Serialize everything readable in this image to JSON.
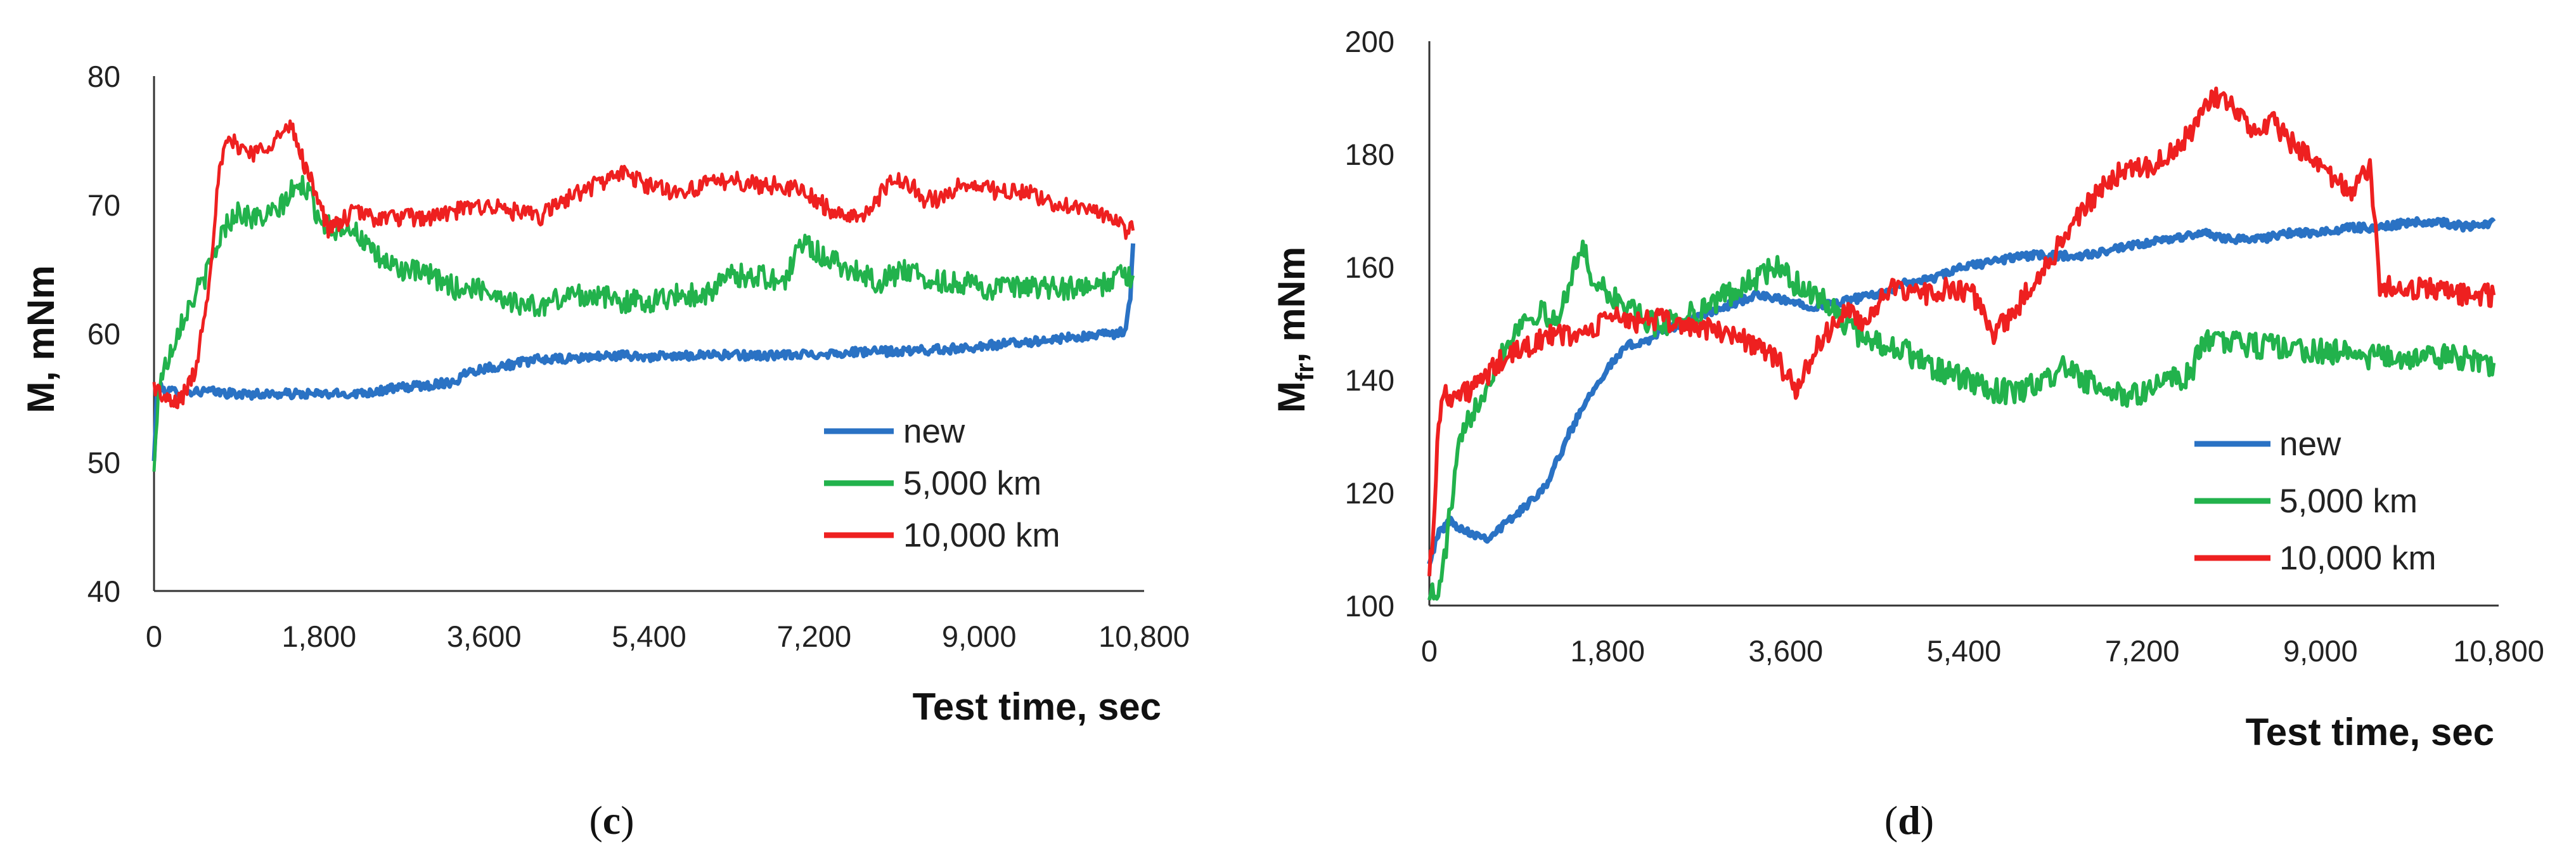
{
  "chart_data": [
    {
      "type": "line",
      "panel": "(c)",
      "caption_letter": "c",
      "xlabel": "Test time, sec",
      "ylabel": "M, mNm",
      "xlim": [
        0,
        10800
      ],
      "ylim": [
        40,
        80
      ],
      "xticks": [
        0,
        1800,
        3600,
        5400,
        7200,
        9000,
        10800
      ],
      "xtick_labels": [
        "0",
        "1,800",
        "3,600",
        "5,400",
        "7,200",
        "9,000",
        "10,800"
      ],
      "yticks": [
        40,
        50,
        60,
        70,
        80
      ],
      "ytick_labels": [
        "40",
        "50",
        "60",
        "70",
        "80"
      ],
      "legend_position": "lower-right",
      "series": [
        {
          "name": "new",
          "color": "#2a72c4",
          "noise": 0.35,
          "x": [
            0,
            30,
            60,
            150,
            300,
            600,
            900,
            1200,
            1500,
            1800,
            2100,
            2400,
            2700,
            3000,
            3300,
            3400,
            3600,
            3900,
            4200,
            4500,
            4800,
            5100,
            5400,
            5700,
            6000,
            6300,
            6600,
            6900,
            7200,
            7500,
            7800,
            8100,
            8400,
            8700,
            9000,
            9300,
            9600,
            9900,
            10200,
            10500,
            10600,
            10650,
            10680
          ],
          "y": [
            50,
            55,
            55.8,
            55.5,
            55.5,
            55.5,
            55.3,
            55.3,
            55.3,
            55.3,
            55.3,
            55.5,
            55.8,
            56,
            56.3,
            57,
            57.3,
            57.6,
            58,
            58,
            58.2,
            58.3,
            58.2,
            58.2,
            58.4,
            58.3,
            58.3,
            58.3,
            58.4,
            58.5,
            58.6,
            58.6,
            58.7,
            58.8,
            59,
            59.2,
            59.4,
            59.6,
            59.8,
            60,
            60.2,
            63,
            67
          ]
        },
        {
          "name": "5,000 km",
          "color": "#22b24c",
          "noise": 0.9,
          "x": [
            0,
            50,
            150,
            300,
            450,
            600,
            750,
            900,
            1050,
            1200,
            1350,
            1500,
            1650,
            1800,
            1950,
            2100,
            2250,
            2400,
            2700,
            3000,
            3300,
            3600,
            3900,
            4200,
            4500,
            4800,
            5100,
            5400,
            5700,
            6000,
            6300,
            6600,
            6900,
            7000,
            7100,
            7300,
            7600,
            7900,
            8200,
            8500,
            8800,
            9100,
            9400,
            9700,
            10000,
            10300,
            10500,
            10680
          ],
          "y": [
            49,
            56,
            58,
            61,
            63,
            65,
            68,
            69.5,
            69,
            69,
            69.5,
            71,
            71.5,
            69,
            68,
            68.5,
            67.5,
            66,
            65,
            64.5,
            63.5,
            63.5,
            62.5,
            62,
            63,
            63,
            62.5,
            62.5,
            63,
            63,
            64.5,
            64.5,
            64,
            66.5,
            67,
            66,
            65,
            64,
            65,
            64,
            64,
            63.5,
            63.5,
            63.5,
            63.5,
            63.5,
            64.5,
            64.5
          ]
        },
        {
          "name": "10,000 km",
          "color": "#ee2020",
          "noise": 0.7,
          "x": [
            0,
            100,
            200,
            300,
            450,
            600,
            700,
            800,
            950,
            1100,
            1300,
            1500,
            1600,
            1700,
            1800,
            1900,
            2000,
            2200,
            2400,
            2700,
            3000,
            3300,
            3600,
            3900,
            4200,
            4500,
            4800,
            5100,
            5400,
            5700,
            6000,
            6300,
            6600,
            6900,
            7200,
            7500,
            7800,
            8000,
            8200,
            8400,
            8600,
            8800,
            9000,
            9200,
            9500,
            9800,
            10100,
            10400,
            10600,
            10680
          ],
          "y": [
            56,
            55,
            54.5,
            55,
            57,
            64,
            72,
            75,
            74.5,
            74,
            75,
            76,
            74,
            72,
            70.5,
            68,
            68.5,
            69.5,
            69,
            69,
            69,
            69.5,
            70,
            69.5,
            69,
            70.5,
            71.5,
            72.5,
            71.5,
            71,
            71.5,
            72,
            71.5,
            71.5,
            70.5,
            69,
            69.5,
            71.5,
            72,
            70.5,
            70.5,
            71.5,
            71.5,
            71,
            71,
            70,
            70,
            69,
            68,
            68
          ]
        }
      ]
    },
    {
      "type": "line",
      "panel": "(d)",
      "caption_letter": "d",
      "xlabel": "Test time, sec",
      "ylabel_main": "M",
      "ylabel_sub": "fr",
      "ylabel_rest": ", mNm",
      "xlim": [
        0,
        10800
      ],
      "ylim": [
        100,
        200
      ],
      "xticks": [
        0,
        1800,
        3600,
        5400,
        7200,
        9000,
        10800
      ],
      "xtick_labels": [
        "0",
        "1,800",
        "3,600",
        "5,400",
        "7,200",
        "9,000",
        "10,800"
      ],
      "yticks": [
        100,
        120,
        140,
        160,
        180,
        200
      ],
      "ytick_labels": [
        "100",
        "120",
        "140",
        "160",
        "180",
        "200"
      ],
      "legend_position": "lower-right",
      "series": [
        {
          "name": "new",
          "color": "#2a72c4",
          "noise": 0.7,
          "x": [
            0,
            100,
            200,
            400,
            600,
            800,
            1000,
            1200,
            1400,
            1600,
            1800,
            2000,
            2200,
            2400,
            2700,
            3000,
            3300,
            3600,
            3900,
            4200,
            4500,
            4800,
            5100,
            5400,
            5700,
            6000,
            6300,
            6600,
            6900,
            7200,
            7500,
            7800,
            8100,
            8400,
            8700,
            9000,
            9300,
            9600,
            9900,
            10200,
            10500,
            10750
          ],
          "y": [
            108,
            113,
            115,
            113,
            112,
            115,
            118,
            122,
            130,
            137,
            142,
            146,
            147,
            149,
            151,
            153,
            155,
            154,
            153,
            154,
            155,
            157,
            158,
            160,
            161,
            162,
            162,
            162,
            163,
            164,
            165,
            166,
            165,
            165,
            166,
            166,
            167,
            167,
            168,
            168,
            167,
            168
          ]
        },
        {
          "name": "5,000 km",
          "color": "#22b24c",
          "noise": 2.2,
          "x": [
            0,
            60,
            120,
            200,
            300,
            450,
            600,
            750,
            900,
            1100,
            1300,
            1450,
            1550,
            1650,
            1800,
            2000,
            2200,
            2400,
            2700,
            3000,
            3300,
            3500,
            3700,
            3900,
            4100,
            4300,
            4500,
            4800,
            5100,
            5400,
            5700,
            6000,
            6200,
            6400,
            6600,
            6800,
            7000,
            7200,
            7500,
            7700,
            7800,
            8000,
            8300,
            8600,
            8900,
            9200,
            9500,
            9800,
            10100,
            10400,
            10600,
            10750
          ],
          "y": [
            103,
            101,
            104,
            115,
            128,
            135,
            140,
            145,
            150,
            152,
            150,
            160,
            163,
            158,
            155,
            153,
            150,
            150,
            152,
            155,
            158,
            160,
            157,
            155,
            152,
            148,
            147,
            145,
            142,
            140,
            138,
            138,
            140,
            142,
            140,
            138,
            137,
            138,
            140,
            141,
            147,
            147,
            146,
            146,
            145,
            145,
            144,
            144,
            144,
            144,
            143,
            143
          ]
        },
        {
          "name": "10,000 km",
          "color": "#ee2020",
          "noise": 2.0,
          "x": [
            0,
            40,
            80,
            150,
            250,
            400,
            550,
            700,
            900,
            1100,
            1300,
            1500,
            1700,
            1800,
            2000,
            2200,
            2500,
            2800,
            3100,
            3300,
            3500,
            3600,
            3700,
            3800,
            4000,
            4200,
            4400,
            4600,
            4900,
            5200,
            5500,
            5700,
            5900,
            6100,
            6300,
            6500,
            6700,
            6900,
            7100,
            7300,
            7500,
            7700,
            7900,
            8100,
            8300,
            8500,
            8700,
            8900,
            9100,
            9300,
            9400,
            9500,
            9600,
            9800,
            10000,
            10200,
            10400,
            10600,
            10750
          ],
          "y": [
            107,
            112,
            130,
            138,
            137,
            138,
            140,
            143,
            145,
            147,
            148,
            148,
            149,
            152,
            150,
            151,
            150,
            149,
            148,
            146,
            144,
            141,
            138,
            142,
            148,
            152,
            150,
            156,
            155,
            156,
            155,
            148,
            152,
            157,
            162,
            168,
            172,
            176,
            178,
            178,
            180,
            184,
            190,
            189,
            184,
            186,
            182,
            179,
            176,
            173,
            175,
            178,
            157,
            156,
            156,
            156,
            155,
            155,
            155
          ]
        }
      ]
    }
  ]
}
